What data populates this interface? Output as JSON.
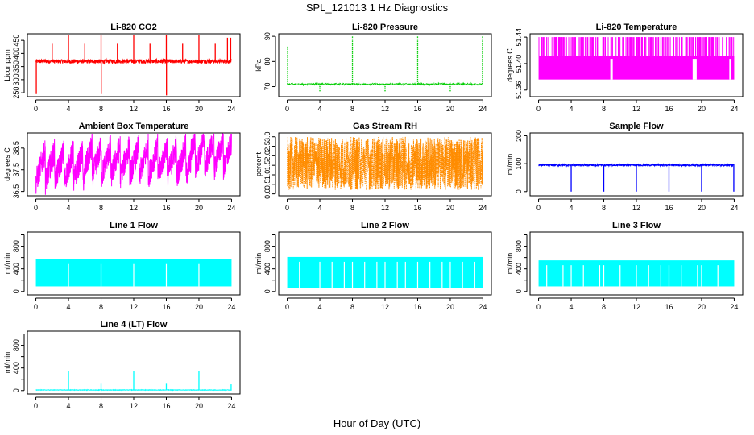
{
  "figure": {
    "title": "SPL_121013  1 Hz Diagnostics",
    "xlabel": "Hour of Day (UTC)"
  },
  "chart_data": [
    {
      "id": "co2",
      "type": "line",
      "title": "Li-820 CO2",
      "ylabel": "Licor ppm",
      "color": "#ff0000",
      "xlim": [
        0,
        24
      ],
      "ylim": [
        235,
        475
      ],
      "x_ticks": [
        0,
        4,
        8,
        12,
        16,
        20,
        24
      ],
      "y_ticks": [
        250,
        300,
        350,
        400,
        450
      ],
      "baseline": 370,
      "noise": 8,
      "spikes": [
        {
          "x": 0.05,
          "y": 245
        },
        {
          "x": 2.0,
          "y": 440
        },
        {
          "x": 4.0,
          "y": 470
        },
        {
          "x": 6.0,
          "y": 440
        },
        {
          "x": 8.0,
          "y": 470
        },
        {
          "x": 8.02,
          "y": 245
        },
        {
          "x": 10.0,
          "y": 440
        },
        {
          "x": 12.0,
          "y": 470
        },
        {
          "x": 14.0,
          "y": 440
        },
        {
          "x": 16.0,
          "y": 470
        },
        {
          "x": 16.02,
          "y": 240
        },
        {
          "x": 18.0,
          "y": 440
        },
        {
          "x": 20.0,
          "y": 470
        },
        {
          "x": 22.0,
          "y": 440
        },
        {
          "x": 23.5,
          "y": 460
        },
        {
          "x": 23.9,
          "y": 460
        }
      ],
      "render": "noise_line"
    },
    {
      "id": "pressure",
      "type": "line",
      "title": "Li-820 Pressure",
      "ylabel": "kPa",
      "color": "#00cc00",
      "xlim": [
        0,
        24
      ],
      "ylim": [
        66,
        91
      ],
      "x_ticks": [
        0,
        4,
        8,
        12,
        16,
        20,
        24
      ],
      "y_ticks": [
        70,
        80,
        90
      ],
      "baseline": 71,
      "noise": 0.3,
      "spikes": [
        {
          "x": 0.05,
          "y": 86
        },
        {
          "x": 4.0,
          "y": 68
        },
        {
          "x": 8.0,
          "y": 90
        },
        {
          "x": 12.0,
          "y": 68
        },
        {
          "x": 16.0,
          "y": 90
        },
        {
          "x": 20.0,
          "y": 68
        },
        {
          "x": 23.95,
          "y": 90
        }
      ],
      "render": "dotted_line"
    },
    {
      "id": "licor_temp",
      "type": "line",
      "title": "Li-820 Temperature",
      "ylabel": "degrees C",
      "color": "#ff00ff",
      "xlim": [
        0,
        24
      ],
      "ylim": [
        51.35,
        51.445
      ],
      "x_ticks": [
        0,
        4,
        8,
        12,
        16,
        20,
        24
      ],
      "y_ticks": [
        51.36,
        51.4,
        51.44
      ],
      "tick_labels": [
        "51.36",
        "51.40",
        "51.44"
      ],
      "levels": [
        51.376,
        51.412,
        51.44
      ],
      "render": "digital_band",
      "gaps": [
        [
          8.8,
          9.1
        ],
        [
          18.9,
          19.4
        ],
        [
          23.4,
          23.6
        ]
      ]
    },
    {
      "id": "box_temp",
      "type": "line",
      "title": "Ambient Box Temperature",
      "ylabel": "degrees C",
      "color": "#ff00ff",
      "xlim": [
        0,
        24
      ],
      "ylim": [
        36.3,
        39.2
      ],
      "x_ticks": [
        0,
        4,
        8,
        12,
        16,
        20,
        24
      ],
      "y_ticks": [
        36.5,
        37.5,
        38.5
      ],
      "tick_labels": [
        "36.5",
        "37.5",
        "38.5"
      ],
      "center": 37.9,
      "amplitude": 0.9,
      "cycle_hours": 1.15,
      "render": "sawtooth_band"
    },
    {
      "id": "rh",
      "type": "line",
      "title": "Gas Stream RH",
      "ylabel": "percent",
      "color": "#ff8c00",
      "xlim": [
        0,
        24
      ],
      "ylim": [
        -0.1,
        3.2
      ],
      "x_ticks": [
        0,
        4,
        8,
        12,
        16,
        20,
        24
      ],
      "y_ticks": [
        0.0,
        0.5,
        1.0,
        1.5,
        2.0,
        2.5,
        3.0
      ],
      "tick_labels": [
        "0.0",
        "0.5",
        "1.0",
        "1.5",
        "2.0",
        "2.5",
        "3.0"
      ],
      "center": 1.6,
      "spread": 1.4,
      "render": "noisy_band"
    },
    {
      "id": "sample_flow",
      "type": "line",
      "title": "Sample Flow",
      "ylabel": "ml/min",
      "color": "#0000ff",
      "xlim": [
        0,
        24
      ],
      "ylim": [
        -15,
        210
      ],
      "x_ticks": [
        0,
        4,
        8,
        12,
        16,
        20,
        24
      ],
      "y_ticks": [
        0,
        100,
        200
      ],
      "baseline": 95,
      "noise": 3,
      "spikes": [
        {
          "x": 4.0,
          "y": 0
        },
        {
          "x": 8.0,
          "y": 0
        },
        {
          "x": 12.0,
          "y": 0
        },
        {
          "x": 16.0,
          "y": 0
        },
        {
          "x": 20.0,
          "y": 0
        },
        {
          "x": 23.95,
          "y": 0
        }
      ],
      "render": "noise_line"
    },
    {
      "id": "line1",
      "type": "line",
      "title": "Line 1 Flow",
      "ylabel": "ml/min",
      "color": "#00ffff",
      "xlim": [
        0,
        24
      ],
      "ylim": [
        -60,
        1050
      ],
      "x_ticks": [
        0,
        4,
        8,
        12,
        16,
        20,
        24
      ],
      "y_ticks": [
        0,
        200,
        400,
        600,
        800,
        1000
      ],
      "tick_labels": [
        "0",
        "",
        "400",
        "",
        "800",
        ""
      ],
      "band": [
        90,
        570
      ],
      "gaps": [
        4.0,
        8.0,
        12.0,
        16.0,
        20.0
      ],
      "render": "flow_band"
    },
    {
      "id": "line2",
      "type": "line",
      "title": "Line 2 Flow",
      "ylabel": "ml/min",
      "color": "#00ffff",
      "xlim": [
        0,
        24
      ],
      "ylim": [
        -60,
        1050
      ],
      "x_ticks": [
        0,
        4,
        8,
        12,
        16,
        20,
        24
      ],
      "y_ticks": [
        0,
        200,
        400,
        600,
        800,
        1000
      ],
      "tick_labels": [
        "0",
        "",
        "400",
        "",
        "800",
        ""
      ],
      "band": [
        60,
        610
      ],
      "gaps": [
        1.5,
        4.0,
        5.5,
        7.0,
        8.0,
        9.5,
        11.0,
        12.0,
        13.5,
        14.5,
        16.0,
        17.5,
        19.0,
        20.0,
        21.5,
        23.0
      ],
      "render": "flow_band"
    },
    {
      "id": "line3",
      "type": "line",
      "title": "Line 3 Flow",
      "ylabel": "ml/min",
      "color": "#00ffff",
      "xlim": [
        0,
        24
      ],
      "ylim": [
        -60,
        1050
      ],
      "x_ticks": [
        0,
        4,
        8,
        12,
        16,
        20,
        24
      ],
      "y_ticks": [
        0,
        200,
        400,
        600,
        800,
        1000
      ],
      "tick_labels": [
        "0",
        "",
        "400",
        "",
        "800",
        ""
      ],
      "band": [
        90,
        550
      ],
      "gaps": [
        1.0,
        3.0,
        4.0,
        5.5,
        7.5,
        8.0,
        10.0,
        12.0,
        13.5,
        15.0,
        16.0,
        17.5,
        19.5,
        20.0,
        22.0
      ],
      "render": "flow_band"
    },
    {
      "id": "line4",
      "type": "line",
      "title": "Line 4 (LT) Flow",
      "ylabel": "ml/min",
      "color": "#00ffff",
      "xlim": [
        0,
        24
      ],
      "ylim": [
        -60,
        1050
      ],
      "x_ticks": [
        0,
        4,
        8,
        12,
        16,
        20,
        24
      ],
      "y_ticks": [
        0,
        200,
        400,
        600,
        800,
        1000
      ],
      "tick_labels": [
        "0",
        "",
        "400",
        "",
        "800",
        ""
      ],
      "baseline": 10,
      "noise": 4,
      "spikes": [
        {
          "x": 4.0,
          "y": 340
        },
        {
          "x": 8.0,
          "y": 120
        },
        {
          "x": 12.0,
          "y": 340
        },
        {
          "x": 16.0,
          "y": 120
        },
        {
          "x": 20.0,
          "y": 340
        },
        {
          "x": 23.95,
          "y": 110
        }
      ],
      "render": "noise_line"
    }
  ]
}
